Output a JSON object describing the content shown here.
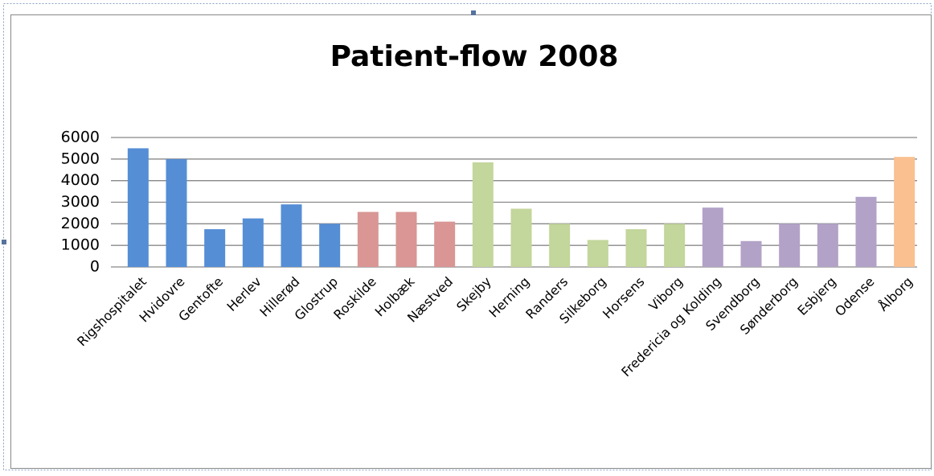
{
  "chart_data": {
    "type": "bar",
    "title": "Patient-flow 2008",
    "categories": [
      "Rigshospitalet",
      "Hvidovre",
      "Gentofte",
      "Herlev",
      "Hillerød",
      "Glostrup",
      "Roskilde",
      "Holbæk",
      "Næstved",
      "Skejby",
      "Herning",
      "Randers",
      "Silkeborg",
      "Horsens",
      "Viborg",
      "Fredericia og Kolding",
      "Svendborg",
      "Sønderborg",
      "Esbjerg",
      "Odense",
      "Ålborg"
    ],
    "values": [
      5500,
      5000,
      1750,
      2250,
      2900,
      2000,
      2550,
      2550,
      2100,
      4850,
      2700,
      2000,
      1250,
      1750,
      2000,
      2750,
      1200,
      2000,
      2000,
      3250,
      5100
    ],
    "colors": [
      "#558ed5",
      "#558ed5",
      "#558ed5",
      "#558ed5",
      "#558ed5",
      "#558ed5",
      "#d99694",
      "#d99694",
      "#d99694",
      "#c3d69b",
      "#c3d69b",
      "#c3d69b",
      "#c3d69b",
      "#c3d69b",
      "#c3d69b",
      "#b3a2c7",
      "#b3a2c7",
      "#b3a2c7",
      "#b3a2c7",
      "#b3a2c7",
      "#fac090"
    ],
    "ylim": [
      0,
      6000
    ],
    "yticks": [
      0,
      1000,
      2000,
      3000,
      4000,
      5000,
      6000
    ],
    "grid": true
  }
}
